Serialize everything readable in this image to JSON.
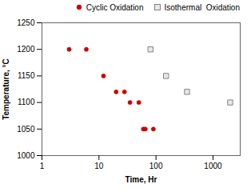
{
  "chart_data": {
    "type": "scatter",
    "xlabel": "Time, Hr",
    "ylabel": "Temperature, °C",
    "log": "x",
    "xlim": [
      1,
      3000
    ],
    "xticks": [
      1,
      10,
      100,
      1000
    ],
    "ylim": [
      1000,
      1250
    ],
    "yticks": [
      1000,
      1050,
      1100,
      1150,
      1200,
      1250
    ],
    "grid": false,
    "legend": "upper right",
    "series": [
      {
        "name": "Cyclic Oxidation",
        "color": "#cc0000",
        "marker": "circle",
        "x": [
          3,
          6,
          12,
          20,
          28,
          35,
          50,
          60,
          65,
          90
        ],
        "values": [
          1200,
          1200,
          1150,
          1120,
          1120,
          1100,
          1100,
          1050,
          1050,
          1050
        ]
      },
      {
        "name": "Isothermal  Oxidation",
        "color": "#777777",
        "marker": "square",
        "x": [
          80,
          150,
          350,
          2000
        ],
        "values": [
          1200,
          1150,
          1120,
          1100
        ]
      }
    ]
  }
}
